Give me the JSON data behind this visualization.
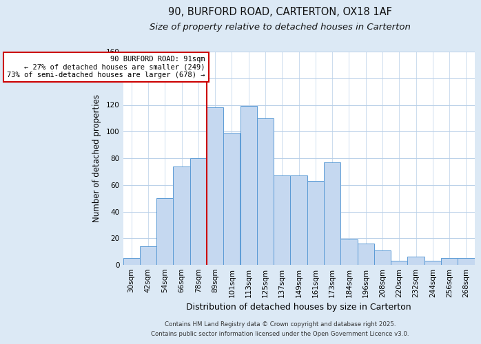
{
  "title": "90, BURFORD ROAD, CARTERTON, OX18 1AF",
  "subtitle": "Size of property relative to detached houses in Carterton",
  "xlabel": "Distribution of detached houses by size in Carterton",
  "ylabel": "Number of detached properties",
  "footer_line1": "Contains HM Land Registry data © Crown copyright and database right 2025.",
  "footer_line2": "Contains public sector information licensed under the Open Government Licence v3.0.",
  "bar_labels": [
    "30sqm",
    "42sqm",
    "54sqm",
    "66sqm",
    "78sqm",
    "89sqm",
    "101sqm",
    "113sqm",
    "125sqm",
    "137sqm",
    "149sqm",
    "161sqm",
    "173sqm",
    "184sqm",
    "196sqm",
    "208sqm",
    "220sqm",
    "232sqm",
    "244sqm",
    "256sqm",
    "268sqm"
  ],
  "bar_values": [
    5,
    14,
    50,
    74,
    80,
    118,
    99,
    119,
    110,
    67,
    67,
    63,
    77,
    19,
    16,
    11,
    3,
    6,
    3,
    5,
    5
  ],
  "bar_color": "#c5d8f0",
  "bar_edge_color": "#5b9bd5",
  "ylim": [
    0,
    160
  ],
  "yticks": [
    0,
    20,
    40,
    60,
    80,
    100,
    120,
    140,
    160
  ],
  "vline_idx": 5,
  "vline_color": "#cc0000",
  "annotation_title": "90 BURFORD ROAD: 91sqm",
  "annotation_line1": "← 27% of detached houses are smaller (249)",
  "annotation_line2": "73% of semi-detached houses are larger (678) →",
  "annotation_box_color": "#ffffff",
  "annotation_box_edge": "#cc0000",
  "bg_color": "#dce9f5",
  "plot_bg_color": "#ffffff",
  "grid_color": "#b8cfe8",
  "title_fontsize": 10.5,
  "subtitle_fontsize": 9.5,
  "xlabel_fontsize": 9,
  "ylabel_fontsize": 8.5,
  "tick_fontsize": 7.5,
  "annotation_fontsize": 7.5
}
